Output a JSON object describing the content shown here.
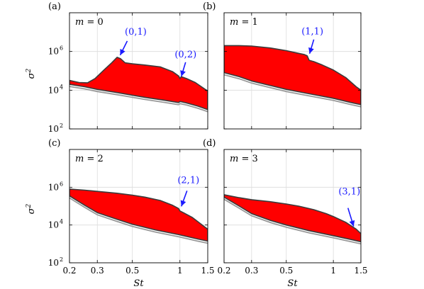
{
  "chart_data": [
    {
      "type": "area",
      "panel": "(a)",
      "m_label": "m = 0",
      "xlabel": "",
      "ylabel": "σ2",
      "xscale": "log",
      "yscale": "log",
      "xlim": [
        0.2,
        1.5
      ],
      "ylim": [
        100,
        100000000
      ],
      "xticks": [
        0.2,
        0.3,
        0.5,
        1,
        1.5
      ],
      "xtick_labels": [],
      "yticks": [
        100,
        10000,
        1000000
      ],
      "ytick_labels": [
        "10",
        "10",
        "10"
      ],
      "ytick_exponents": [
        "2",
        "4",
        "6"
      ],
      "grid": true,
      "upper": {
        "x": [
          0.2,
          0.23,
          0.26,
          0.29,
          0.33,
          0.37,
          0.4,
          0.42,
          0.45,
          0.5,
          0.6,
          0.75,
          0.9,
          0.98,
          1.0,
          1.02,
          1.1,
          1.25,
          1.5
        ],
        "y": [
          32000,
          25000,
          24000,
          40000,
          110000,
          260000,
          500000,
          430000,
          260000,
          230000,
          200000,
          160000,
          90000,
          55000,
          40000,
          50000,
          40000,
          25000,
          9000
        ]
      },
      "lower": {
        "x": [
          0.2,
          0.25,
          0.3,
          0.4,
          0.5,
          0.6,
          0.8,
          0.98,
          1.0,
          1.1,
          1.3,
          1.5
        ],
        "y": [
          20000,
          15000,
          11000,
          7500,
          5500,
          4300,
          3000,
          2300,
          2600,
          2200,
          1500,
          1000
        ]
      },
      "annotations": [
        {
          "text": "(0,1)",
          "x": 0.41,
          "y": 500000
        },
        {
          "text": "(0,2)",
          "x": 1.0,
          "y": 40000
        }
      ]
    },
    {
      "type": "area",
      "panel": "(b)",
      "m_label": "m = 1",
      "xlabel": "",
      "ylabel": "",
      "xscale": "log",
      "yscale": "log",
      "xlim": [
        0.2,
        1.5
      ],
      "ylim": [
        100,
        100000000
      ],
      "xticks": [
        0.2,
        0.3,
        0.5,
        1,
        1.5
      ],
      "xtick_labels": [],
      "yticks": [
        100,
        10000,
        1000000
      ],
      "ytick_labels": [],
      "grid": true,
      "upper": {
        "x": [
          0.2,
          0.25,
          0.3,
          0.4,
          0.5,
          0.6,
          0.65,
          0.68,
          0.7,
          0.75,
          0.85,
          1.0,
          1.2,
          1.4,
          1.5
        ],
        "y": [
          2000000,
          2000000,
          1900000,
          1500000,
          1100000,
          800000,
          700000,
          600000,
          350000,
          300000,
          200000,
          110000,
          45000,
          15000,
          10000
        ]
      },
      "lower": {
        "x": [
          0.2,
          0.25,
          0.3,
          0.4,
          0.5,
          0.7,
          1.0,
          1.3,
          1.5
        ],
        "y": [
          80000,
          50000,
          30000,
          17000,
          11000,
          6500,
          3800,
          2300,
          1800
        ]
      },
      "annotations": [
        {
          "text": "(1,1)",
          "x": 0.69,
          "y": 600000
        }
      ]
    },
    {
      "type": "area",
      "panel": "(c)",
      "m_label": "m = 2",
      "xlabel": "St",
      "ylabel": "σ2",
      "xscale": "log",
      "yscale": "log",
      "xlim": [
        0.2,
        1.5
      ],
      "ylim": [
        100,
        100000000
      ],
      "xticks": [
        0.2,
        0.3,
        0.5,
        1,
        1.5
      ],
      "xtick_labels": [
        "0.2",
        "0.3",
        "0.5",
        "1",
        "1.5"
      ],
      "yticks": [
        100,
        10000,
        1000000
      ],
      "ytick_labels": [
        "10",
        "10",
        "10"
      ],
      "ytick_exponents": [
        "2",
        "4",
        "6"
      ],
      "grid": true,
      "upper": {
        "x": [
          0.2,
          0.25,
          0.3,
          0.4,
          0.5,
          0.6,
          0.75,
          0.9,
          0.98,
          1.0,
          1.05,
          1.2,
          1.5
        ],
        "y": [
          800000,
          700000,
          600000,
          480000,
          380000,
          300000,
          200000,
          110000,
          75000,
          55000,
          45000,
          25000,
          6000
        ]
      },
      "lower": {
        "x": [
          0.2,
          0.25,
          0.3,
          0.4,
          0.5,
          0.7,
          1.0,
          1.3,
          1.5
        ],
        "y": [
          350000,
          110000,
          45000,
          20000,
          11000,
          5500,
          3000,
          1800,
          1400
        ]
      },
      "annotations": [
        {
          "text": "(2,1)",
          "x": 1.0,
          "y": 75000
        }
      ]
    },
    {
      "type": "area",
      "panel": "(d)",
      "m_label": "m = 3",
      "xlabel": "St",
      "ylabel": "",
      "xscale": "log",
      "yscale": "log",
      "xlim": [
        0.2,
        1.5
      ],
      "ylim": [
        100,
        100000000
      ],
      "xticks": [
        0.2,
        0.3,
        0.5,
        1,
        1.5
      ],
      "xtick_labels": [
        "0.2",
        "0.3",
        "0.5",
        "1",
        "1.5"
      ],
      "yticks": [
        100,
        10000,
        1000000
      ],
      "ytick_labels": [],
      "grid": true,
      "upper": {
        "x": [
          0.2,
          0.25,
          0.3,
          0.4,
          0.5,
          0.6,
          0.75,
          0.9,
          1.0,
          1.2,
          1.4,
          1.5
        ],
        "y": [
          400000,
          280000,
          220000,
          170000,
          130000,
          100000,
          65000,
          40000,
          28000,
          14000,
          6000,
          3500
        ]
      },
      "lower": {
        "x": [
          0.2,
          0.25,
          0.3,
          0.4,
          0.5,
          0.7,
          1.0,
          1.3,
          1.5
        ],
        "y": [
          300000,
          100000,
          40000,
          17000,
          10000,
          5000,
          2700,
          1700,
          1300
        ]
      },
      "annotations": [
        {
          "text": "(3,1)",
          "x": 1.32,
          "y": 6500
        }
      ]
    }
  ],
  "colors": {
    "band_fill": "#ff0000",
    "band_edge": "#3a3a3a",
    "lower_line": "#9a9a9a",
    "annotation": "#1a1aff",
    "grid": "#dcdcdc"
  }
}
